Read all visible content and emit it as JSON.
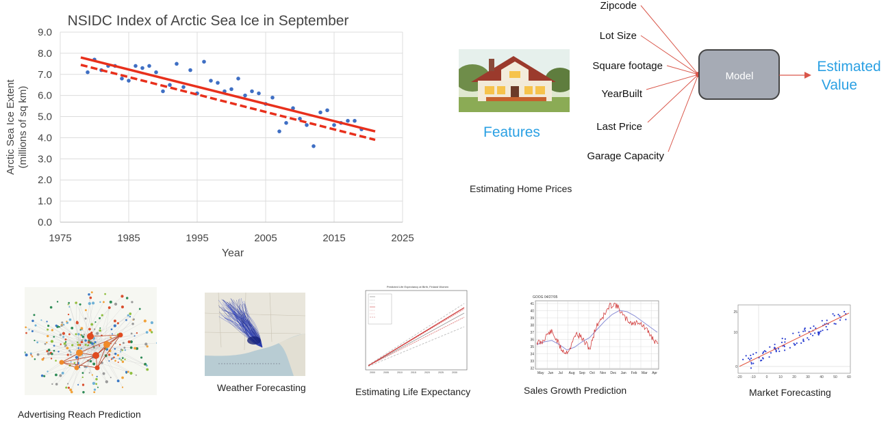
{
  "chart_data": {
    "type": "scatter",
    "title": "NSIDC Index of Arctic Sea Ice in September",
    "xlabel": "Year",
    "ylabel": "Arctic Sea Ice Extent",
    "ylabel2": "(millions of sq km)",
    "xlim": [
      1975,
      2025
    ],
    "ylim": [
      0,
      9
    ],
    "xticks": [
      "1975",
      "1985",
      "1995",
      "2005",
      "2015",
      "2025"
    ],
    "yticks": [
      "0.0",
      "1.0",
      "2.0",
      "3.0",
      "4.0",
      "5.0",
      "6.0",
      "7.0",
      "8.0",
      "9.0"
    ],
    "grid": true,
    "points": [
      [
        1979,
        7.1
      ],
      [
        1980,
        7.7
      ],
      [
        1981,
        7.2
      ],
      [
        1982,
        7.4
      ],
      [
        1983,
        7.4
      ],
      [
        1984,
        6.8
      ],
      [
        1985,
        6.7
      ],
      [
        1986,
        7.4
      ],
      [
        1987,
        7.3
      ],
      [
        1988,
        7.4
      ],
      [
        1989,
        7.1
      ],
      [
        1990,
        6.2
      ],
      [
        1991,
        6.5
      ],
      [
        1992,
        7.5
      ],
      [
        1993,
        6.4
      ],
      [
        1994,
        7.2
      ],
      [
        1995,
        6.1
      ],
      [
        1996,
        7.6
      ],
      [
        1997,
        6.7
      ],
      [
        1998,
        6.6
      ],
      [
        1999,
        6.2
      ],
      [
        2000,
        6.3
      ],
      [
        2001,
        6.8
      ],
      [
        2002,
        6.0
      ],
      [
        2003,
        6.2
      ],
      [
        2004,
        6.1
      ],
      [
        2005,
        5.6
      ],
      [
        2006,
        5.9
      ],
      [
        2007,
        4.3
      ],
      [
        2008,
        4.7
      ],
      [
        2009,
        5.4
      ],
      [
        2010,
        4.9
      ],
      [
        2011,
        4.6
      ],
      [
        2012,
        3.6
      ],
      [
        2013,
        5.2
      ],
      [
        2014,
        5.3
      ],
      [
        2015,
        4.6
      ],
      [
        2016,
        4.7
      ],
      [
        2017,
        4.8
      ],
      [
        2018,
        4.8
      ],
      [
        2019,
        4.4
      ]
    ],
    "trend_solid": [
      [
        1978,
        7.8
      ],
      [
        2021,
        4.3
      ]
    ],
    "trend_dashed": [
      [
        1978,
        7.45
      ],
      [
        2021,
        3.9
      ]
    ]
  },
  "diagram": {
    "features_label": "Features",
    "inputs": [
      "Zipcode",
      "Lot Size",
      "Square footage",
      "YearBuilt",
      "Last Price",
      "Garage Capacity"
    ],
    "model_label": "Model",
    "output_label_line1": "Estimated",
    "output_label_line2": "Value",
    "caption": "Estimating Home Prices",
    "colors": {
      "arrow": "#d9564a",
      "model_fill": "#a6abb5",
      "output_text": "#2aa0e3"
    }
  },
  "thumbnails": {
    "advertising": "Advertising Reach Prediction",
    "weather": "Weather Forecasting",
    "life": "Estimating Life Expectancy",
    "sales": "Sales Growth Prediction",
    "market": "Market Forecasting",
    "life_title": "Predicted Life Expectancy at Birth, Finland Women",
    "sales_title": "GOOG 04/27/05",
    "sales_months": [
      "May",
      "Jun",
      "Jul",
      "Aug",
      "Sep",
      "Oct",
      "Nov",
      "Dec",
      "Jan",
      "Feb",
      "Mar",
      "Apr"
    ],
    "sales_yticks": [
      "41",
      "40",
      "39",
      "38",
      "37",
      "36",
      "35",
      "34",
      "33",
      "32"
    ],
    "market_xticks": [
      "-20",
      "-10",
      "0",
      "10",
      "20",
      "30",
      "40",
      "50",
      "60"
    ],
    "market_yticks": [
      "25",
      "10",
      "0"
    ]
  }
}
